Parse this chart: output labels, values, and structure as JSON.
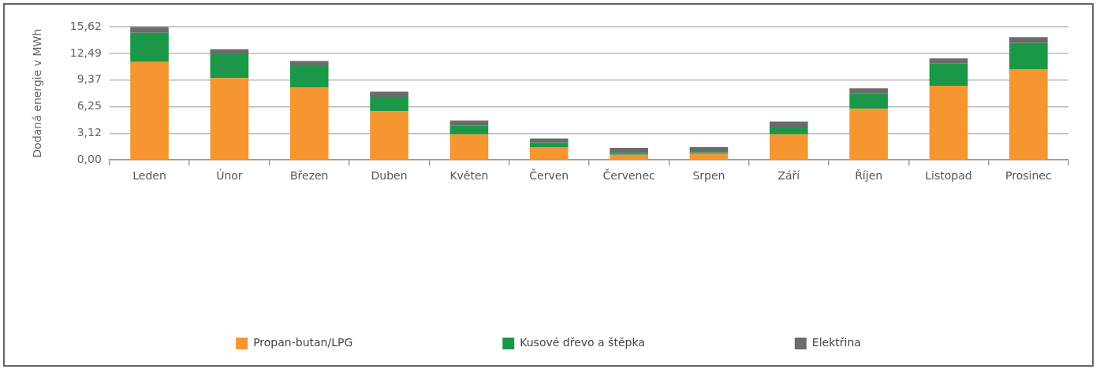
{
  "chart_data": {
    "type": "bar",
    "stacked": true,
    "ylabel": "Dodaná energie v MWh",
    "categories": [
      "Leden",
      "Únor",
      "Březen",
      "Duben",
      "Květen",
      "Červen",
      "Červenec",
      "Srpen",
      "Září",
      "Říjen",
      "Listopad",
      "Prosinec"
    ],
    "series": [
      {
        "name": "Propan-butan/LPG",
        "color": "#f59631",
        "values": [
          11.5,
          9.6,
          8.5,
          5.7,
          3.0,
          1.5,
          0.6,
          0.7,
          3.0,
          6.0,
          8.7,
          10.6
        ]
      },
      {
        "name": "Kusové dřevo a štěpka",
        "color": "#1a9848",
        "values": [
          3.4,
          2.8,
          2.5,
          1.7,
          1.0,
          0.5,
          0.2,
          0.2,
          0.9,
          1.8,
          2.6,
          3.1
        ]
      },
      {
        "name": "Elektřina",
        "color": "#6b6b6b",
        "values": [
          0.7,
          0.6,
          0.6,
          0.6,
          0.6,
          0.5,
          0.6,
          0.6,
          0.6,
          0.6,
          0.6,
          0.7
        ]
      }
    ],
    "ylim": [
      0,
      15.62
    ],
    "yticks": [
      {
        "value": 0,
        "label": "0,00"
      },
      {
        "value": 3.12,
        "label": "3,12"
      },
      {
        "value": 6.25,
        "label": "6,25"
      },
      {
        "value": 9.37,
        "label": "9,37"
      },
      {
        "value": 12.49,
        "label": "12,49"
      },
      {
        "value": 15.62,
        "label": "15,62"
      }
    ],
    "grid": "y",
    "legend": "bottom"
  }
}
